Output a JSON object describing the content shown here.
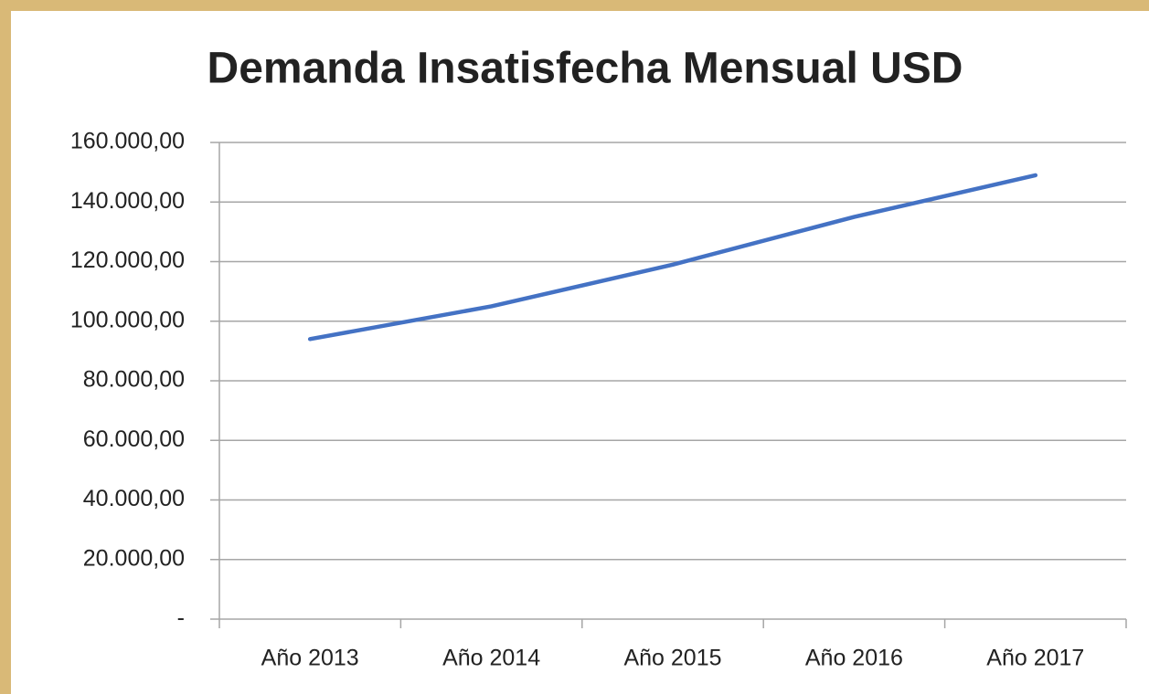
{
  "chart_data": {
    "type": "line",
    "title": "Demanda Insatisfecha Mensual USD",
    "categories": [
      "Año 2013",
      "Año 2014",
      "Año 2015",
      "Año 2016",
      "Año 2017"
    ],
    "series": [
      {
        "name": "Demanda Insatisfecha Mensual USD",
        "color": "#4472c4",
        "values": [
          94000,
          105000,
          119000,
          135000,
          149000
        ]
      }
    ],
    "ylim": [
      0,
      160000
    ],
    "yticks": [
      {
        "value": 0,
        "label": "-"
      },
      {
        "value": 20000,
        "label": "20.000,00"
      },
      {
        "value": 40000,
        "label": "40.000,00"
      },
      {
        "value": 60000,
        "label": "60.000,00"
      },
      {
        "value": 80000,
        "label": "80.000,00"
      },
      {
        "value": 100000,
        "label": "100.000,00"
      },
      {
        "value": 120000,
        "label": "120.000,00"
      },
      {
        "value": 140000,
        "label": "140.000,00"
      },
      {
        "value": 160000,
        "label": "160.000,00"
      }
    ],
    "grid": true
  }
}
